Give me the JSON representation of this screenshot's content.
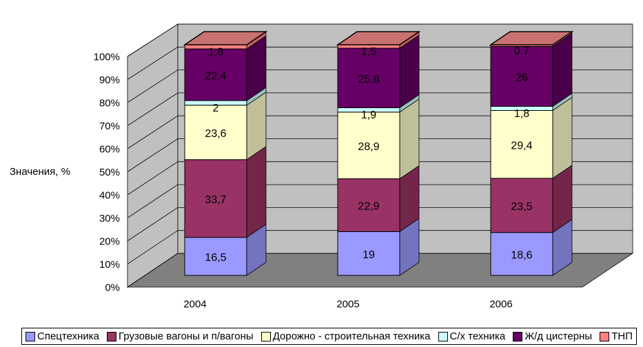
{
  "chart_data": {
    "type": "bar",
    "stacked": true,
    "projection": "3d",
    "title": "",
    "ylabel": "Значения, %",
    "categories": [
      "2004",
      "2005",
      "2006"
    ],
    "y_ticks": [
      "100%",
      "90%",
      "80%",
      "70%",
      "60%",
      "50%",
      "40%",
      "30%",
      "20%",
      "10%",
      "0%"
    ],
    "ylim": [
      0,
      100
    ],
    "legend_position": "bottom",
    "grid": true,
    "series": [
      {
        "name": "Спецтехника",
        "color": "#9999FF",
        "side_color": "#7373BF",
        "values": [
          16.5,
          19,
          18.6
        ],
        "labels": [
          "16,5",
          "19",
          "18,6"
        ]
      },
      {
        "name": "Грузовые вагоны и п/вагоны",
        "color": "#993366",
        "side_color": "#732649",
        "values": [
          33.7,
          22.9,
          23.5
        ],
        "labels": [
          "33,7",
          "22,9",
          "23,5"
        ]
      },
      {
        "name": "Дорожно - строительная техника",
        "color": "#FFFFCC",
        "side_color": "#BFBF99",
        "values": [
          23.6,
          28.9,
          29.4
        ],
        "labels": [
          "23,6",
          "28,9",
          "29,4"
        ]
      },
      {
        "name": "С/х техника",
        "color": "#CCFFFF",
        "side_color": "#99BFBF",
        "values": [
          2,
          1.9,
          1.8
        ],
        "labels": [
          "2",
          "1,9",
          "1,8"
        ]
      },
      {
        "name": "Ж/д цистерны",
        "color": "#660066",
        "side_color": "#4A004A",
        "values": [
          22.4,
          25.8,
          26
        ],
        "labels": [
          "22,4",
          "25,8",
          "26"
        ]
      },
      {
        "name": "ТНП",
        "color": "#FF8080",
        "side_color": "#BF6060",
        "values": [
          1.8,
          1.5,
          0.7
        ],
        "labels": [
          "1,8",
          "1,5",
          "0,7"
        ]
      }
    ],
    "top_shade": "#C87272",
    "colors": {
      "wall": "#C0C0C0",
      "floor": "#808080",
      "outline": "#000000",
      "background": "#FFFFFF",
      "text": "#000000"
    }
  }
}
